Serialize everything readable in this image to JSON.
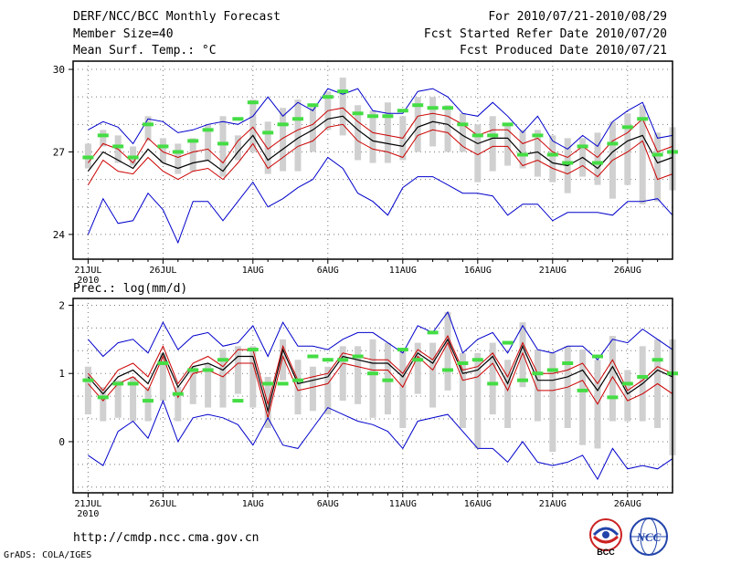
{
  "header": {
    "title": "DERF/NCC/BCC Monthly Forecast",
    "member_size": "Member Size=40",
    "variable": "Mean Surf. Temp.: °C",
    "period": "For 2010/07/21-2010/08/29",
    "start_date": "Fcst Started Refer Date 2010/07/20",
    "produced_date": "Fcst Produced Date 2010/07/21"
  },
  "footer": {
    "url": "http://cmdp.ncc.cma.gov.cn",
    "credit": "GrADS: COLA/IGES",
    "logo_left": "BCC",
    "logo_right": "NCC"
  },
  "colors": {
    "envelope": "#0000cc",
    "inner": "#cc0000",
    "mean": "#000000",
    "box": "#d0d0d0",
    "obs": "#44dd44"
  },
  "chart_data": [
    {
      "type": "line",
      "title": "Mean Surf. Temp.: °C",
      "xlabels": [
        "21JUL",
        "26JUL",
        "1AUG",
        "6AUG",
        "11AUG",
        "16AUG",
        "21AUG",
        "26AUG"
      ],
      "xlabel_year": "2010",
      "xlabel_days": [
        1,
        6,
        12,
        17,
        22,
        27,
        32,
        37
      ],
      "x_range": [
        0,
        40
      ],
      "ylim": [
        23.1,
        30.3
      ],
      "yticks": [
        24,
        27,
        30
      ],
      "series": [
        {
          "name": "max",
          "values": [
            27.8,
            28.1,
            27.9,
            27.3,
            28.2,
            28.1,
            27.7,
            27.8,
            28.0,
            28.1,
            28.0,
            28.3,
            29.0,
            28.3,
            28.8,
            28.5,
            29.3,
            29.1,
            29.3,
            28.5,
            28.4,
            28.4,
            29.2,
            29.3,
            29.0,
            28.4,
            28.3,
            28.8,
            28.3,
            27.7,
            28.3,
            27.4,
            27.1,
            27.6,
            27.2,
            28.1,
            28.5,
            28.8,
            27.5,
            27.6
          ]
        },
        {
          "name": "upper",
          "values": [
            26.6,
            27.3,
            27.1,
            26.6,
            27.5,
            27.0,
            26.8,
            27.0,
            27.1,
            26.6,
            27.4,
            27.9,
            27.1,
            27.5,
            27.8,
            28.0,
            28.5,
            28.6,
            28.1,
            27.7,
            27.6,
            27.5,
            28.3,
            28.4,
            28.3,
            28.0,
            27.6,
            27.8,
            27.8,
            27.3,
            27.5,
            27.0,
            26.8,
            27.2,
            26.8,
            27.4,
            27.7,
            28.2,
            27.0,
            27.2
          ]
        },
        {
          "name": "mean",
          "values": [
            26.3,
            27.0,
            26.7,
            26.4,
            27.1,
            26.6,
            26.4,
            26.6,
            26.7,
            26.3,
            27.0,
            27.6,
            26.7,
            27.1,
            27.5,
            27.8,
            28.2,
            28.3,
            27.8,
            27.4,
            27.3,
            27.2,
            27.9,
            28.1,
            28.0,
            27.6,
            27.3,
            27.5,
            27.5,
            26.9,
            27.0,
            26.6,
            26.5,
            26.8,
            26.4,
            27.0,
            27.4,
            27.6,
            26.6,
            26.8
          ]
        },
        {
          "name": "lower",
          "values": [
            25.8,
            26.7,
            26.3,
            26.2,
            26.8,
            26.3,
            26.0,
            26.3,
            26.4,
            26.0,
            26.6,
            27.3,
            26.4,
            26.8,
            27.2,
            27.4,
            27.9,
            28.0,
            27.4,
            27.1,
            27.0,
            26.8,
            27.6,
            27.8,
            27.7,
            27.2,
            26.9,
            27.2,
            27.2,
            26.5,
            26.7,
            26.4,
            26.2,
            26.5,
            26.1,
            26.7,
            27.0,
            27.4,
            26.0,
            26.2
          ]
        },
        {
          "name": "min",
          "values": [
            24.0,
            25.3,
            24.4,
            24.5,
            25.5,
            24.9,
            23.7,
            25.2,
            25.2,
            24.5,
            25.2,
            25.9,
            25.0,
            25.3,
            25.7,
            26.0,
            26.8,
            26.4,
            25.5,
            25.2,
            24.7,
            25.7,
            26.1,
            26.1,
            25.8,
            25.5,
            25.5,
            25.4,
            24.7,
            25.1,
            25.1,
            24.5,
            24.8,
            24.8,
            24.8,
            24.7,
            25.2,
            25.2,
            25.3,
            24.7
          ]
        }
      ],
      "box_ranges": [
        [
          26.4,
          27.3
        ],
        [
          27.2,
          27.8
        ],
        [
          26.6,
          27.6
        ],
        [
          26.5,
          27.2
        ],
        [
          27.4,
          28.3
        ],
        [
          26.6,
          27.5
        ],
        [
          26.2,
          27.3
        ],
        [
          26.3,
          27.5
        ],
        [
          26.7,
          28.0
        ],
        [
          26.1,
          28.3
        ],
        [
          26.7,
          27.6
        ],
        [
          27.0,
          28.9
        ],
        [
          26.2,
          28.1
        ],
        [
          26.3,
          28.6
        ],
        [
          26.3,
          28.9
        ],
        [
          27.0,
          28.7
        ],
        [
          27.8,
          29.2
        ],
        [
          27.6,
          29.7
        ],
        [
          26.7,
          28.7
        ],
        [
          26.6,
          28.5
        ],
        [
          26.6,
          28.8
        ],
        [
          26.7,
          28.3
        ],
        [
          27.0,
          29.0
        ],
        [
          27.2,
          29.0
        ],
        [
          27.0,
          28.7
        ],
        [
          27.0,
          28.4
        ],
        [
          25.9,
          28.0
        ],
        [
          26.3,
          28.3
        ],
        [
          26.5,
          28.0
        ],
        [
          26.4,
          27.8
        ],
        [
          26.1,
          27.8
        ],
        [
          25.9,
          27.6
        ],
        [
          25.5,
          27.5
        ],
        [
          26.1,
          27.5
        ],
        [
          25.8,
          27.7
        ],
        [
          25.3,
          28.1
        ],
        [
          25.8,
          28.4
        ],
        [
          25.1,
          28.7
        ],
        [
          25.2,
          27.7
        ],
        [
          25.6,
          27.9
        ]
      ],
      "obs": [
        26.8,
        27.6,
        27.2,
        26.8,
        28.0,
        27.2,
        27.0,
        27.4,
        27.8,
        27.3,
        28.2,
        28.8,
        27.7,
        28.0,
        28.2,
        28.7,
        29.0,
        29.2,
        28.4,
        28.3,
        28.3,
        28.5,
        28.7,
        28.6,
        28.6,
        28.0,
        27.6,
        27.6,
        28.0,
        26.9,
        27.6,
        26.9,
        26.6,
        27.2,
        26.6,
        27.3,
        27.9,
        28.2,
        26.9,
        27.0
      ]
    },
    {
      "type": "line",
      "title": "Prec.: log(mm/d)",
      "xlabels": [
        "21JUL",
        "26JUL",
        "1AUG",
        "6AUG",
        "11AUG",
        "16AUG",
        "21AUG",
        "26AUG"
      ],
      "xlabel_year": "2010",
      "xlabel_days": [
        1,
        6,
        12,
        17,
        22,
        27,
        32,
        37
      ],
      "x_range": [
        0,
        40
      ],
      "ylim": [
        -0.75,
        2.1
      ],
      "yticks": [
        0,
        1,
        2
      ],
      "series": [
        {
          "name": "max",
          "values": [
            1.5,
            1.25,
            1.45,
            1.5,
            1.3,
            1.75,
            1.35,
            1.55,
            1.6,
            1.4,
            1.45,
            1.7,
            1.25,
            1.75,
            1.4,
            1.4,
            1.35,
            1.5,
            1.6,
            1.6,
            1.45,
            1.3,
            1.7,
            1.6,
            1.9,
            1.3,
            1.5,
            1.6,
            1.3,
            1.7,
            1.35,
            1.3,
            1.4,
            1.4,
            1.2,
            1.5,
            1.45,
            1.65,
            1.5,
            1.35
          ]
        },
        {
          "name": "upper",
          "values": [
            1.0,
            0.75,
            1.05,
            1.15,
            0.95,
            1.4,
            0.85,
            1.15,
            1.25,
            1.1,
            1.35,
            1.35,
            0.55,
            1.4,
            0.9,
            0.95,
            1.0,
            1.3,
            1.25,
            1.2,
            1.2,
            1.0,
            1.35,
            1.2,
            1.55,
            1.05,
            1.1,
            1.3,
            0.95,
            1.45,
            1.0,
            1.0,
            1.05,
            1.15,
            0.85,
            1.2,
            0.75,
            0.9,
            1.1,
            1.0
          ]
        },
        {
          "name": "mean",
          "values": [
            0.95,
            0.7,
            0.95,
            1.05,
            0.85,
            1.3,
            0.8,
            1.1,
            1.15,
            1.05,
            1.25,
            1.25,
            0.45,
            1.35,
            0.85,
            0.9,
            0.95,
            1.25,
            1.2,
            1.15,
            1.15,
            0.95,
            1.3,
            1.15,
            1.5,
            1.0,
            1.05,
            1.25,
            0.85,
            1.4,
            0.9,
            0.9,
            0.95,
            1.05,
            0.75,
            1.1,
            0.7,
            0.85,
            1.05,
            0.95
          ]
        },
        {
          "name": "lower",
          "values": [
            0.85,
            0.6,
            0.85,
            0.95,
            0.75,
            1.25,
            0.65,
            1.0,
            1.05,
            0.95,
            1.15,
            1.15,
            0.35,
            1.25,
            0.75,
            0.8,
            0.85,
            1.15,
            1.1,
            1.05,
            1.05,
            0.8,
            1.25,
            1.05,
            1.45,
            0.9,
            0.95,
            1.15,
            0.75,
            1.3,
            0.75,
            0.75,
            0.8,
            0.9,
            0.55,
            0.95,
            0.6,
            0.7,
            0.85,
            0.7
          ]
        },
        {
          "name": "min",
          "values": [
            -0.2,
            -0.35,
            0.15,
            0.3,
            0.05,
            0.6,
            0.0,
            0.35,
            0.4,
            0.35,
            0.25,
            -0.05,
            0.35,
            -0.05,
            -0.1,
            0.2,
            0.5,
            0.4,
            0.3,
            0.25,
            0.15,
            -0.1,
            0.3,
            0.35,
            0.4,
            0.15,
            -0.1,
            -0.1,
            -0.3,
            0.0,
            -0.3,
            -0.35,
            -0.3,
            -0.2,
            -0.55,
            -0.1,
            -0.4,
            -0.35,
            -0.4,
            -0.25
          ]
        }
      ],
      "box_ranges": [
        [
          0.4,
          1.1
        ],
        [
          0.3,
          0.8
        ],
        [
          0.35,
          0.9
        ],
        [
          0.3,
          0.95
        ],
        [
          0.3,
          0.8
        ],
        [
          0.6,
          1.3
        ],
        [
          0.3,
          0.8
        ],
        [
          0.55,
          1.1
        ],
        [
          0.5,
          1.15
        ],
        [
          0.5,
          1.35
        ],
        [
          0.7,
          1.4
        ],
        [
          0.5,
          1.4
        ],
        [
          0.2,
          0.95
        ],
        [
          0.9,
          1.5
        ],
        [
          0.4,
          1.2
        ],
        [
          0.45,
          1.1
        ],
        [
          0.4,
          1.1
        ],
        [
          0.6,
          1.4
        ],
        [
          0.55,
          1.4
        ],
        [
          0.35,
          1.5
        ],
        [
          0.4,
          1.45
        ],
        [
          0.2,
          1.35
        ],
        [
          0.7,
          1.45
        ],
        [
          0.5,
          1.45
        ],
        [
          0.75,
          1.9
        ],
        [
          0.2,
          1.3
        ],
        [
          -0.1,
          1.3
        ],
        [
          0.4,
          1.45
        ],
        [
          0.2,
          1.2
        ],
        [
          0.8,
          1.75
        ],
        [
          0.3,
          1.35
        ],
        [
          -0.15,
          1.3
        ],
        [
          0.2,
          1.4
        ],
        [
          -0.05,
          1.35
        ],
        [
          -0.1,
          1.2
        ],
        [
          0.3,
          1.55
        ],
        [
          0.3,
          1.05
        ],
        [
          0.3,
          1.4
        ],
        [
          0.2,
          1.5
        ],
        [
          -0.2,
          1.5
        ]
      ],
      "obs": [
        0.9,
        0.65,
        0.85,
        0.85,
        0.6,
        1.15,
        0.7,
        1.05,
        1.05,
        1.2,
        0.6,
        1.35,
        0.85,
        0.85,
        0.9,
        1.25,
        1.2,
        1.2,
        1.25,
        1.0,
        0.9,
        1.35,
        1.2,
        1.6,
        1.05,
        1.15,
        1.2,
        0.85,
        1.45,
        0.9,
        1.0,
        1.05,
        1.15,
        0.75,
        1.25,
        0.65,
        0.85,
        0.95,
        1.2,
        1.0
      ]
    }
  ]
}
